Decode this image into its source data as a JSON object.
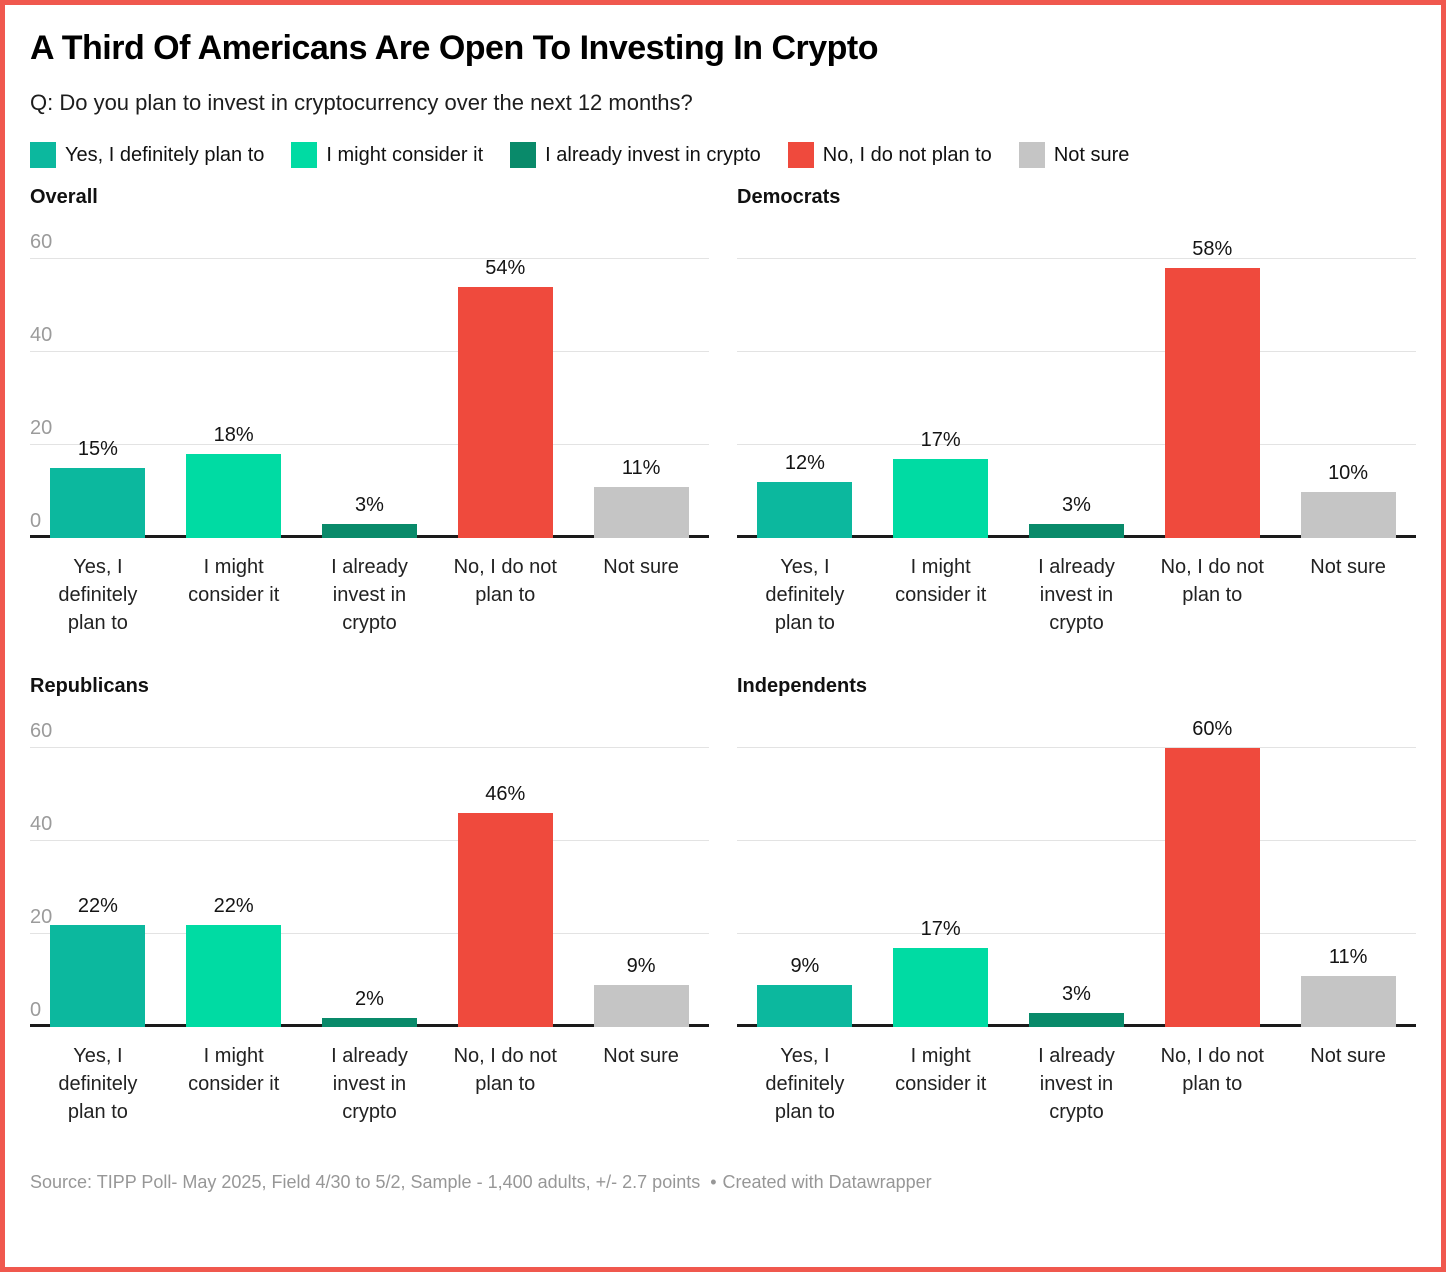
{
  "chart_data": {
    "type": "bar",
    "title": "A Third Of Americans Are Open To Investing In Crypto",
    "subtitle": "Q: Do you plan to invest in cryptocurrency over the next 12 months?",
    "categories": [
      "Yes, I definitely plan to",
      "I might consider it",
      "I already invest in crypto",
      "No, I do not plan to",
      "Not sure"
    ],
    "categories_wrapped": [
      "Yes, I\ndefinitely\nplan to",
      "I might\nconsider it",
      "I already\ninvest in\ncrypto",
      "No, I do not\nplan to",
      "Not sure"
    ],
    "colors": [
      "#0cb89e",
      "#00dba3",
      "#098a6a",
      "#ef4a3d",
      "#c5c5c5"
    ],
    "legend": [
      {
        "label": "Yes, I definitely plan to",
        "color": "#0cb89e"
      },
      {
        "label": "I might consider it",
        "color": "#00dba3"
      },
      {
        "label": "I already invest in crypto",
        "color": "#098a6a"
      },
      {
        "label": "No, I do not plan to",
        "color": "#ef4a3d"
      },
      {
        "label": "Not sure",
        "color": "#c5c5c5"
      }
    ],
    "ylim": [
      0,
      60
    ],
    "yticks": [
      0,
      20,
      40,
      60
    ],
    "grid": true,
    "value_suffix": "%",
    "panels": [
      {
        "title": "Overall",
        "values": [
          15,
          18,
          3,
          54,
          11
        ],
        "y_axis_labels": true
      },
      {
        "title": "Democrats",
        "values": [
          12,
          17,
          3,
          58,
          10
        ],
        "y_axis_labels": false
      },
      {
        "title": "Republicans",
        "values": [
          22,
          22,
          2,
          46,
          9
        ],
        "y_axis_labels": true
      },
      {
        "title": "Independents",
        "values": [
          9,
          17,
          3,
          60,
          11
        ],
        "y_axis_labels": false
      }
    ]
  },
  "footer": {
    "source": "Source: TIPP Poll- May 2025, Field 4/30 to 5/2, Sample - 1,400 adults, +/- 2.7 points",
    "separator": "•",
    "credit": "Created with Datawrapper"
  }
}
